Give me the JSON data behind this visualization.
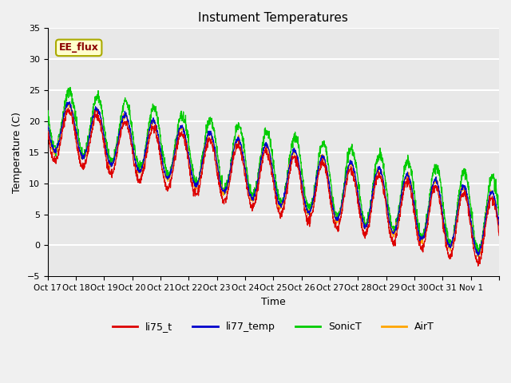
{
  "title": "Instument Temperatures",
  "xlabel": "Time",
  "ylabel": "Temperature (C)",
  "ylim": [
    -5,
    35
  ],
  "annotation": "EE_flux",
  "xtick_labels": [
    "Oct 17",
    "Oct 18",
    "Oct 19",
    "Oct 20",
    "Oct 21",
    "Oct 22",
    "Oct 23",
    "Oct 24",
    "Oct 25",
    "Oct 26",
    "Oct 27",
    "Oct 28",
    "Oct 29",
    "Oct 30",
    "Oct 31",
    "Nov 1",
    ""
  ],
  "series_colors": {
    "li75_t": "#dd0000",
    "li77_temp": "#0000cc",
    "SonicT": "#00cc00",
    "AirT": "#ffa500"
  },
  "background_color": "#e8e8e8",
  "grid_color": "#ffffff",
  "fig_background": "#f0f0f0",
  "num_points": 2000,
  "num_days": 16
}
